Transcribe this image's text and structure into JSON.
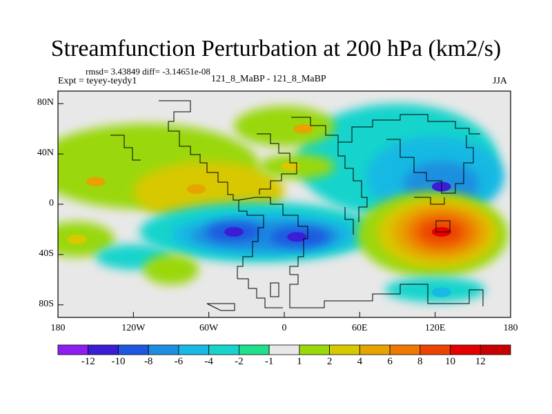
{
  "chart_data": {
    "type": "contour-map",
    "title": "Streamfunction Perturbation at 200 hPa (km2/s)",
    "stats": "rmsd= 3.43849 diff= -3.14651e-08",
    "left_label": "Expt = teyey-teydy1",
    "center_label": "121_8_MaBP - 121_8_MaBP",
    "right_label": "JJA",
    "lat_labels": [
      "80N",
      "40N",
      "0",
      "40S",
      "80S"
    ],
    "lat_values": [
      80,
      40,
      0,
      -40,
      -80
    ],
    "lon_labels": [
      "180",
      "120W",
      "60W",
      "0",
      "60E",
      "120E",
      "180"
    ],
    "lon_values": [
      -180,
      -120,
      -60,
      0,
      60,
      120,
      180
    ],
    "colorbar": {
      "labels": [
        "-12",
        "-10",
        "-8",
        "-6",
        "-4",
        "-2",
        "-1",
        "1",
        "2",
        "4",
        "6",
        "8",
        "10",
        "12"
      ],
      "levels": [
        -12,
        -10,
        -8,
        -6,
        -4,
        -2,
        -1,
        1,
        2,
        4,
        6,
        8,
        10,
        12
      ],
      "colors": [
        "#8c1ff0",
        "#3a1ed6",
        "#1f58e0",
        "#1e8fe0",
        "#18b9e3",
        "#18d4cc",
        "#20e08c",
        "#e8e8e8",
        "#9ad80a",
        "#d8c800",
        "#e6a400",
        "#ef7800",
        "#ec4400",
        "#e30000"
      ]
    },
    "anomaly_centers": [
      {
        "lon": 125,
        "lat": -22,
        "value": 12
      },
      {
        "lon": 125,
        "lat": 14,
        "value": -10
      },
      {
        "lon": 10,
        "lat": -26,
        "value": -10
      },
      {
        "lon": -40,
        "lat": -22,
        "value": -10
      },
      {
        "lon": -150,
        "lat": 18,
        "value": 6
      },
      {
        "lon": -70,
        "lat": 12,
        "value": 6
      },
      {
        "lon": 5,
        "lat": 30,
        "value": 4
      },
      {
        "lon": 15,
        "lat": 60,
        "value": 6
      },
      {
        "lon": -165,
        "lat": -28,
        "value": 4
      },
      {
        "lon": -90,
        "lat": -52,
        "value": 2
      },
      {
        "lon": 125,
        "lat": -70,
        "value": -4
      }
    ]
  }
}
